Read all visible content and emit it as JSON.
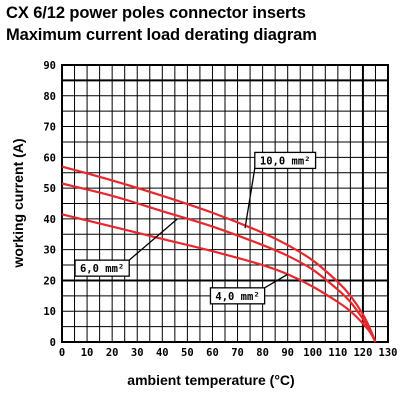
{
  "chart_data": {
    "type": "line",
    "title": "CX 6/12 power poles connector inserts",
    "subtitle": "Maximum current load derating diagram",
    "xlabel": "ambient temperature (°C)",
    "ylabel": "working current (A)",
    "xlim": [
      0,
      130
    ],
    "ylim": [
      0,
      90
    ],
    "xticks": [
      "0",
      "10",
      "20",
      "30",
      "40",
      "50",
      "60",
      "70",
      "80",
      "90",
      "100",
      "110",
      "120",
      "130"
    ],
    "yticks": [
      "0",
      "10",
      "20",
      "30",
      "40",
      "50",
      "60",
      "70",
      "80",
      "90"
    ],
    "grid": true,
    "colors": {
      "series": "#e8282e",
      "grid": "#000000",
      "background": "#ffffff"
    },
    "series": [
      {
        "name": "10,0 mm²",
        "x": [
          0,
          20,
          40,
          60,
          80,
          90,
          100,
          110,
          115,
          120,
          123,
          125
        ],
        "y": [
          57,
          52.5,
          47.5,
          42,
          35.5,
          31.5,
          26.5,
          19.5,
          15,
          9,
          4,
          0
        ]
      },
      {
        "name": "6,0 mm²",
        "x": [
          0,
          20,
          40,
          60,
          80,
          90,
          100,
          110,
          115,
          120,
          123,
          125
        ],
        "y": [
          51.5,
          47.5,
          42.5,
          37.5,
          31.5,
          28,
          23.5,
          17,
          13,
          7.5,
          3.5,
          0
        ]
      },
      {
        "name": "4,0 mm²",
        "x": [
          0,
          20,
          40,
          60,
          80,
          90,
          100,
          110,
          115,
          120,
          123,
          125
        ],
        "y": [
          41.5,
          37.5,
          33.5,
          29.5,
          25,
          22,
          18,
          13,
          10,
          6,
          3,
          0
        ]
      }
    ],
    "annotations": [
      {
        "series": 0,
        "text": "10,0 mm²",
        "label_x": 89,
        "label_y": 59,
        "arrow_to_x": 73,
        "arrow_to_y": 37
      },
      {
        "series": 1,
        "text": "6,0 mm²",
        "label_x": 16,
        "label_y": 24,
        "arrow_to_x": 46,
        "arrow_to_y": 40
      },
      {
        "series": 2,
        "text": "4,0 mm²",
        "label_x": 70,
        "label_y": 15,
        "arrow_to_x": 90,
        "arrow_to_y": 22
      }
    ]
  }
}
